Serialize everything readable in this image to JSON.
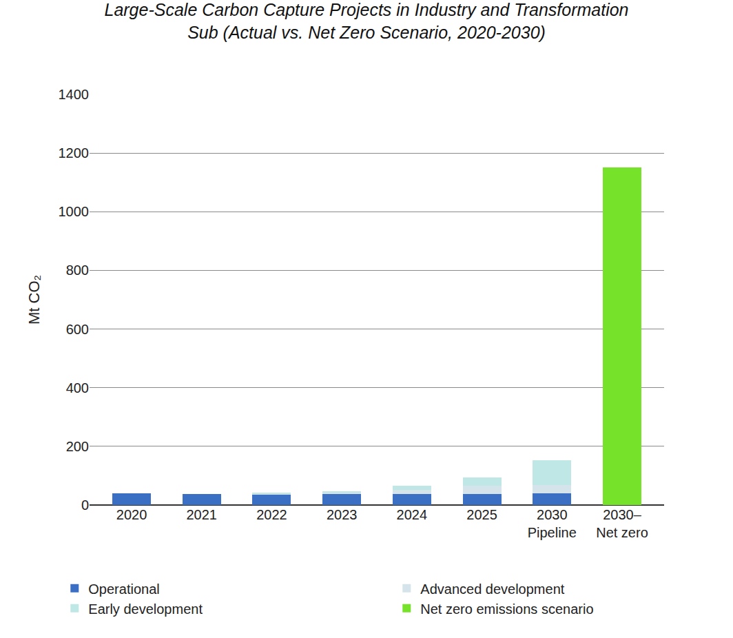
{
  "chart_data": {
    "type": "bar",
    "title": "Large-Scale Carbon Capture Projects in Industry and Transformation\nSub (Actual vs. Net Zero Scenario, 2020-2030)",
    "y_label": "Mt CO₂",
    "categories": [
      "2020",
      "2021",
      "2022",
      "2023",
      "2024",
      "2025",
      "2030\nPipeline",
      "2030–\nNet zero"
    ],
    "stacked": true,
    "grid": true,
    "legend": "bottom",
    "ylim": [
      0,
      1400
    ],
    "yticks": [
      0,
      200,
      400,
      600,
      800,
      1000,
      1200,
      1400
    ],
    "series": [
      {
        "name": "Operational",
        "color": "#3a6fc4",
        "values": [
          40,
          37,
          37,
          37,
          37,
          37,
          40,
          null
        ]
      },
      {
        "name": "Advanced development",
        "color": "#d5e3ea",
        "values": [
          null,
          null,
          2,
          5,
          15,
          28,
          28,
          null
        ]
      },
      {
        "name": "Early development",
        "color": "#bfe7e6",
        "values": [
          null,
          null,
          4,
          6,
          14,
          30,
          85,
          null
        ]
      },
      {
        "name": "Net zero emissions scenario",
        "color": "#77e22a",
        "values": [
          null,
          null,
          null,
          null,
          null,
          null,
          null,
          1150
        ]
      }
    ]
  }
}
